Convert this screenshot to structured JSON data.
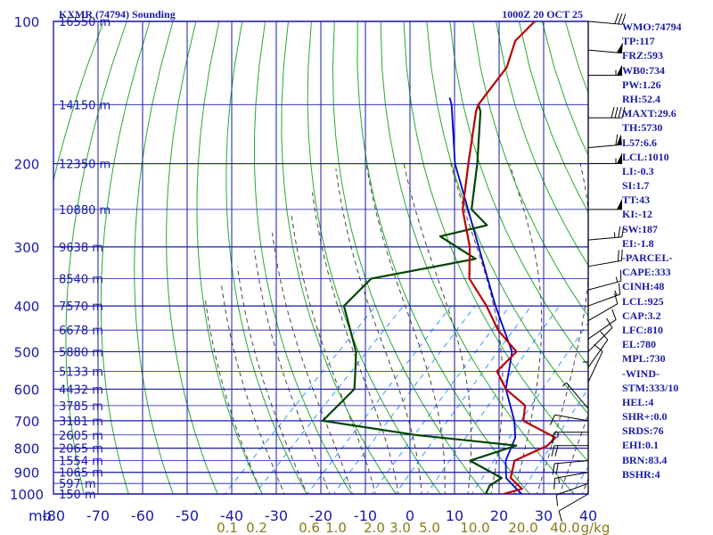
{
  "header": {
    "title": "KXMR (74794) Sounding",
    "time": "1000Z 20 OCT 25"
  },
  "stats": [
    "WMO:74794",
    "TP:117",
    "FRZ:593",
    "WB0:734",
    "PW:1.26",
    "RH:52.4",
    "MAXT:29.6",
    "TH:5730",
    "L57:6.6",
    "LCL:1010",
    "LI:-0.3",
    "SI:1.7",
    "TT:43",
    "KI:-12",
    "SW:187",
    "EI:-1.8",
    "-PARCEL-",
    "CAPE:333",
    "CINH:48",
    "LCL:925",
    "CAP:3.2",
    "LFC:810",
    "EL:780",
    "MPL:730",
    "-WIND-",
    "STM:333/10",
    "HEL:4",
    "SHR+:0.0",
    "SRDS:76",
    "EHI:0.1",
    "BRN:83.4",
    "BSHR:4"
  ],
  "colors": {
    "grid": "#1a1aa8",
    "dry_adiabat": "#2aaa2a",
    "moist_adiabat": "#444444",
    "mixing_ratio": "#3399ff",
    "temperature": "#bb0000",
    "dewpoint": "#004400",
    "parcel": "#0000cc",
    "mixing_label": "#8a7a1a"
  },
  "chart_data": {
    "type": "skew-t",
    "x_label_unit": "mb",
    "pressure_levels": [
      100,
      200,
      300,
      400,
      500,
      600,
      700,
      800,
      900,
      1000
    ],
    "pressure_labels": [
      "100",
      "200",
      "300",
      "400",
      "500",
      "600",
      "700",
      "800",
      "900",
      "1000"
    ],
    "temperature_ticks": [
      -80,
      -70,
      -60,
      -50,
      -40,
      -30,
      -20,
      -10,
      0,
      10,
      20,
      30,
      40
    ],
    "temperature_labels": [
      "-80",
      "-70",
      "-60",
      "-50",
      "-40",
      "-30",
      "-20",
      "-10",
      "0",
      "10",
      "20",
      "30",
      "40"
    ],
    "height_labels": [
      {
        "p": 100,
        "text": "16550 m"
      },
      {
        "p": 150,
        "text": "14150 m"
      },
      {
        "p": 200,
        "text": "12350 m"
      },
      {
        "p": 250,
        "text": "10880 m"
      },
      {
        "p": 300,
        "text": "9638 m"
      },
      {
        "p": 350,
        "text": "8540 m"
      },
      {
        "p": 400,
        "text": "7570 m"
      },
      {
        "p": 450,
        "text": "6678 m"
      },
      {
        "p": 500,
        "text": "5880 m"
      },
      {
        "p": 550,
        "text": "5133 m"
      },
      {
        "p": 600,
        "text": "4432 m"
      },
      {
        "p": 650,
        "text": "3785 m"
      },
      {
        "p": 700,
        "text": "3181 m"
      },
      {
        "p": 750,
        "text": "2605 m"
      },
      {
        "p": 800,
        "text": "2065 m"
      },
      {
        "p": 850,
        "text": "1554 m"
      },
      {
        "p": 900,
        "text": "1065 m"
      },
      {
        "p": 950,
        "text": "597 m"
      },
      {
        "p": 1000,
        "text": "150 m"
      }
    ],
    "mixing_ratio_labels": [
      "0.1",
      "0.2",
      "0.6",
      "1.0",
      "2.0",
      "3.0",
      "5.0",
      "10.0",
      "20.0",
      "40.0"
    ],
    "mixing_ratio_unit": "g/kg",
    "temperature_profile": [
      [
        1008,
        21
      ],
      [
        1000,
        21
      ],
      [
        975,
        24
      ],
      [
        925,
        19
      ],
      [
        850,
        16
      ],
      [
        790,
        20
      ],
      [
        760,
        20
      ],
      [
        700,
        9
      ],
      [
        650,
        6
      ],
      [
        600,
        -2
      ],
      [
        550,
        -8
      ],
      [
        500,
        -8
      ],
      [
        450,
        -17
      ],
      [
        400,
        -25
      ],
      [
        350,
        -35
      ],
      [
        300,
        -42
      ],
      [
        250,
        -52
      ],
      [
        200,
        -61
      ],
      [
        155,
        -71
      ],
      [
        150,
        -72
      ],
      [
        125,
        -74
      ],
      [
        110,
        -78
      ],
      [
        100,
        -78
      ]
    ],
    "dewpoint_profile": [
      [
        1008,
        20
      ],
      [
        1000,
        17
      ],
      [
        960,
        16
      ],
      [
        925,
        17
      ],
      [
        850,
        6
      ],
      [
        790,
        13
      ],
      [
        750,
        -12
      ],
      [
        700,
        -36
      ],
      [
        600,
        -36
      ],
      [
        560,
        -39
      ],
      [
        500,
        -44
      ],
      [
        400,
        -57
      ],
      [
        350,
        -57
      ],
      [
        318,
        -38
      ],
      [
        285,
        -51
      ],
      [
        270,
        -43
      ],
      [
        250,
        -50
      ],
      [
        200,
        -59
      ],
      [
        155,
        -70
      ],
      [
        150,
        -72
      ]
    ],
    "parcel_profile": [
      [
        1000,
        25
      ],
      [
        925,
        18
      ],
      [
        850,
        14
      ],
      [
        760,
        11
      ],
      [
        700,
        7
      ],
      [
        600,
        -2
      ],
      [
        500,
        -9
      ],
      [
        400,
        -23
      ],
      [
        300,
        -40
      ],
      [
        200,
        -64
      ],
      [
        150,
        -78
      ],
      [
        145,
        -80
      ]
    ],
    "wind_barbs": [
      {
        "p": 100,
        "dir": 275,
        "spd": 30
      },
      {
        "p": 115,
        "dir": 275,
        "spd": 50
      },
      {
        "p": 130,
        "dir": 270,
        "spd": 55
      },
      {
        "p": 160,
        "dir": 270,
        "spd": 40
      },
      {
        "p": 185,
        "dir": 265,
        "spd": 60
      },
      {
        "p": 200,
        "dir": 270,
        "spd": 55
      },
      {
        "p": 250,
        "dir": 270,
        "spd": 50
      },
      {
        "p": 290,
        "dir": 265,
        "spd": 25
      },
      {
        "p": 330,
        "dir": 260,
        "spd": 20
      },
      {
        "p": 370,
        "dir": 255,
        "spd": 15
      },
      {
        "p": 400,
        "dir": 250,
        "spd": 15
      },
      {
        "p": 430,
        "dir": 240,
        "spd": 10
      },
      {
        "p": 470,
        "dir": 235,
        "spd": 10
      },
      {
        "p": 500,
        "dir": 225,
        "spd": 10
      },
      {
        "p": 540,
        "dir": 215,
        "spd": 10
      },
      {
        "p": 580,
        "dir": 205,
        "spd": 10
      },
      {
        "p": 620,
        "dir": 180,
        "spd": 5
      },
      {
        "p": 660,
        "dir": 140,
        "spd": 5
      },
      {
        "p": 700,
        "dir": 100,
        "spd": 10
      },
      {
        "p": 740,
        "dir": 90,
        "spd": 15
      },
      {
        "p": 790,
        "dir": 90,
        "spd": 20
      },
      {
        "p": 850,
        "dir": 85,
        "spd": 20
      },
      {
        "p": 900,
        "dir": 80,
        "spd": 15
      },
      {
        "p": 950,
        "dir": 70,
        "spd": 10
      },
      {
        "p": 1000,
        "dir": 60,
        "spd": 10
      }
    ]
  }
}
